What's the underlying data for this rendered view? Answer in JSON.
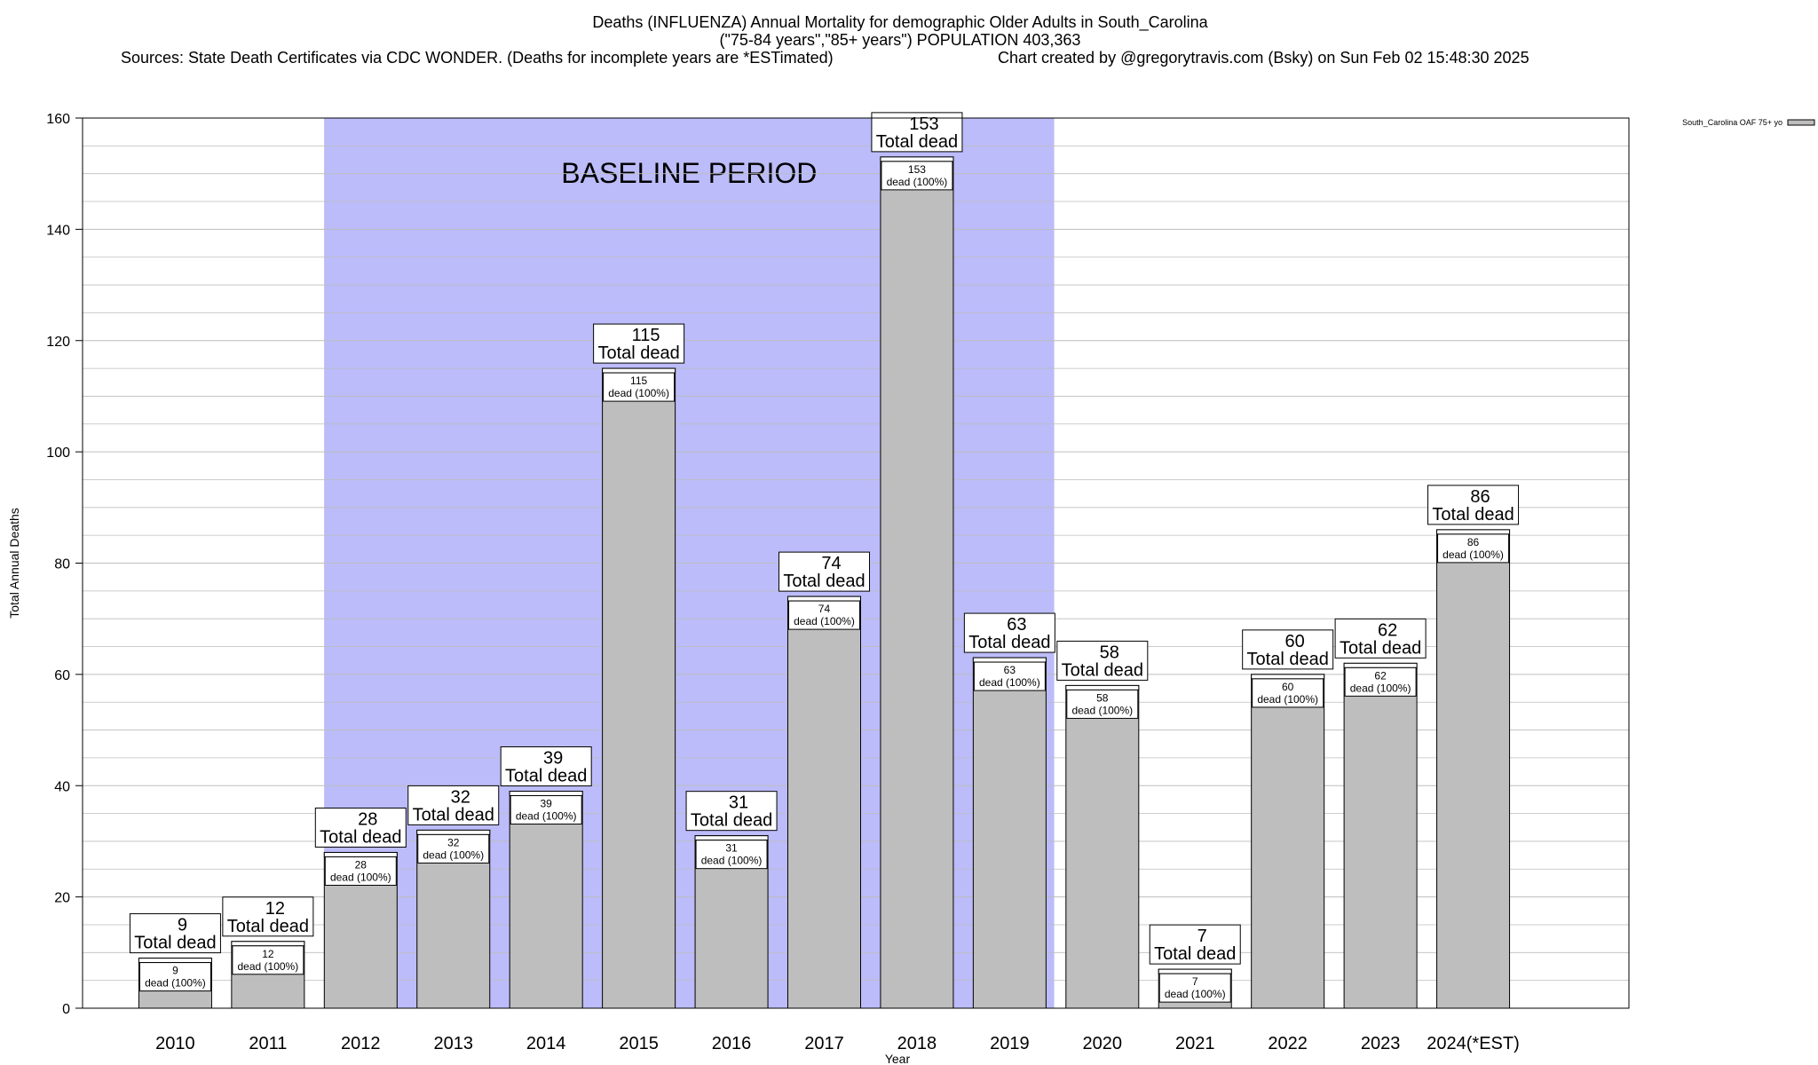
{
  "title": {
    "line1": "Deaths (INFLUENZA) Annual Mortality for demographic Older Adults in South_Carolina",
    "line2": "(\"75-84 years\",\"85+ years\") POPULATION 403,363",
    "line3_left": "Sources: State Death Certificates via CDC WONDER. (Deaths for incomplete years are *ESTimated)",
    "line3_right": "Chart created by @gregorytravis.com (Bsky) on Sun Feb 02 15:48:30 2025"
  },
  "annotation": {
    "text": "BASELINE PERIOD",
    "start_category": "2012",
    "end_category": "2019",
    "color": "#bcbcfa"
  },
  "legend": {
    "label": "South_Carolina OAF 75+ yo",
    "position": "top-right"
  },
  "colors": {
    "bar": "#bebebe",
    "bar_stroke": "#000000",
    "grid": "#bdbdbd"
  },
  "chart_data": {
    "type": "bar",
    "title": "Deaths (INFLUENZA) Annual Mortality for demographic Older Adults in South_Carolina",
    "xlabel": "Year",
    "ylabel": "Total Annual Deaths",
    "ylim": [
      0,
      160
    ],
    "y_ticks": [
      0,
      20,
      40,
      60,
      80,
      100,
      120,
      140,
      160
    ],
    "grid": true,
    "categories": [
      "2010",
      "2011",
      "2012",
      "2013",
      "2014",
      "2015",
      "2016",
      "2017",
      "2018",
      "2019",
      "2020",
      "2021",
      "2022",
      "2023",
      "2024(*EST)"
    ],
    "series": [
      {
        "name": "South_Carolina OAF 75+ yo",
        "values": [
          9,
          12,
          28,
          32,
          39,
          115,
          31,
          74,
          153,
          63,
          58,
          7,
          60,
          62,
          86
        ]
      }
    ],
    "total_label": "Total dead",
    "inner_label": "dead (100%)"
  }
}
